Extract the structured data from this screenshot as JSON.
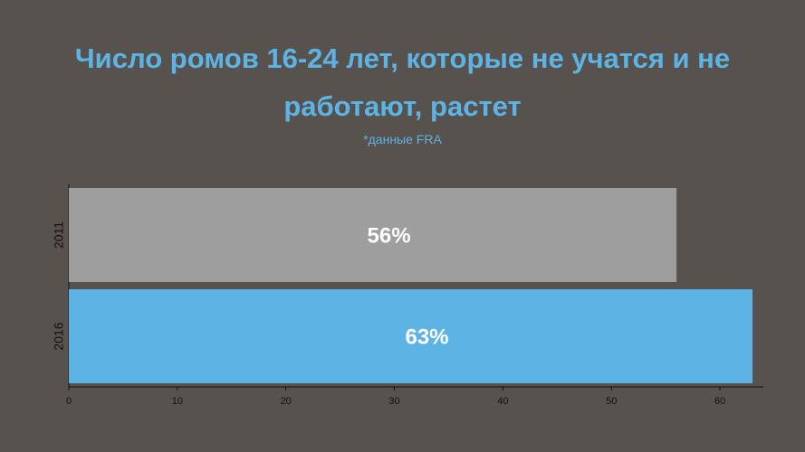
{
  "chart_data": {
    "type": "bar",
    "orientation": "horizontal",
    "title": "Число ромов 16-24 лет, которые не учатся и не работают, растет",
    "subtitle": "*данные FRA",
    "categories": [
      "2011",
      "2016"
    ],
    "values": [
      56,
      63
    ],
    "value_labels": [
      "56%",
      "63%"
    ],
    "colors": [
      "#9e9e9e",
      "#5db4e4"
    ],
    "xlim": [
      0,
      64
    ],
    "xticks": [
      0,
      10,
      20,
      30,
      40,
      50,
      60
    ],
    "grid": false
  }
}
